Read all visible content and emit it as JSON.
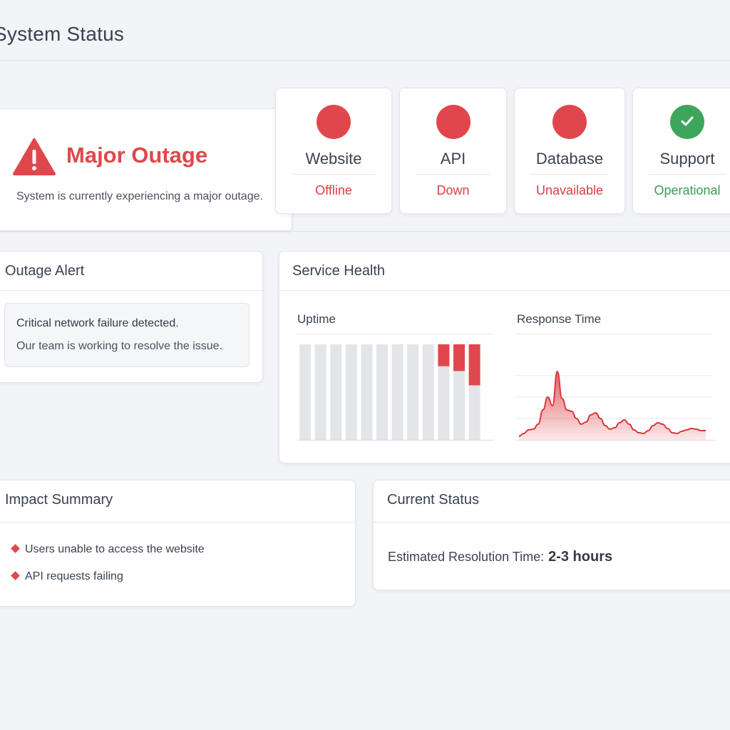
{
  "page": {
    "title": "System Status"
  },
  "banner": {
    "title": "Major Outage",
    "description": "System is currently experiencing a major outage.",
    "icon": "warning-triangle-icon",
    "color": "#e0474c"
  },
  "services": [
    {
      "name": "Website",
      "status": "Offline",
      "state": "down"
    },
    {
      "name": "API",
      "status": "Down",
      "state": "down"
    },
    {
      "name": "Database",
      "status": "Unavailable",
      "state": "down"
    },
    {
      "name": "Support",
      "status": "Operational",
      "state": "up"
    }
  ],
  "colors": {
    "down": "#e0474c",
    "up": "#3ea65c",
    "neutral_bar": "#e3e5e9"
  },
  "outage_alert": {
    "title": "Outage Alert",
    "message": "Critical network failure detected.",
    "detail": "Our team is working to resolve the issue."
  },
  "service_health": {
    "title": "Service Health",
    "uptime": {
      "title": "Uptime",
      "bars": [
        {
          "up": 1.0,
          "down": 0.0
        },
        {
          "up": 1.0,
          "down": 0.0
        },
        {
          "up": 1.0,
          "down": 0.0
        },
        {
          "up": 1.0,
          "down": 0.0
        },
        {
          "up": 1.0,
          "down": 0.0
        },
        {
          "up": 1.0,
          "down": 0.0
        },
        {
          "up": 1.0,
          "down": 0.0
        },
        {
          "up": 1.0,
          "down": 0.0
        },
        {
          "up": 1.0,
          "down": 0.0
        },
        {
          "up": 0.77,
          "down": 0.23
        },
        {
          "up": 0.72,
          "down": 0.28
        },
        {
          "up": 0.57,
          "down": 0.43
        }
      ]
    },
    "response_time": {
      "title": "Response Time",
      "values": [
        5,
        9,
        14,
        15,
        22,
        42,
        60,
        48,
        96,
        58,
        42,
        40,
        30,
        22,
        25,
        35,
        38,
        30,
        20,
        15,
        17,
        24,
        28,
        22,
        14,
        10,
        9,
        13,
        20,
        24,
        22,
        16,
        10,
        9,
        12,
        14,
        16,
        15,
        13,
        13
      ],
      "ylim": [
        0,
        120
      ]
    }
  },
  "impact_summary": {
    "title": "Impact Summary",
    "items": [
      "Users unable to access the website",
      "API requests failing"
    ]
  },
  "current_status": {
    "title": "Current Status",
    "eta_label": "Estimated Resolution Time:",
    "eta_value": "2-3 hours"
  }
}
